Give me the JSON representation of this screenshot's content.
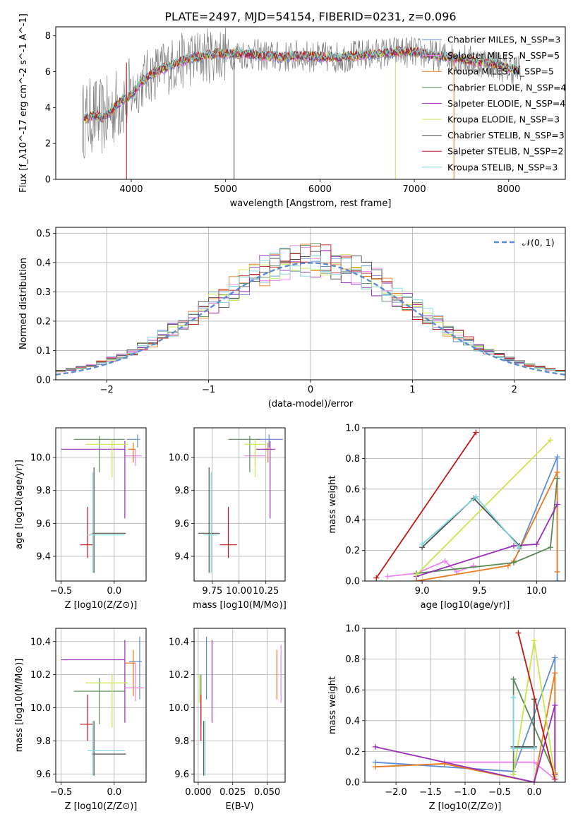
{
  "colors": {
    "chabrier_miles": "#5f8dd3",
    "salpeter_miles": "#ee82ee",
    "kroupa_miles": "#e87a1f",
    "chabrier_elodie": "#5a8a5a",
    "salpeter_elodie": "#9b30b8",
    "kroupa_elodie": "#c8e84a",
    "chabrier_stelib": "#505050",
    "salpeter_stelib": "#c01818",
    "kroupa_stelib": "#7fd6dc"
  },
  "chart_data": [
    {
      "id": "spectrum",
      "type": "line",
      "title": "PLATE=2497, MJD=54154, FIBERID=0231, z=0.096",
      "xlabel": "wavelength [Angstrom, rest frame]",
      "ylabel": "Flux [f_λ10^-17 erg cm^-2 s^-1 A^-1]",
      "xlim": [
        3200,
        8600
      ],
      "ylim": [
        0,
        8.5
      ],
      "xticks": [
        4000,
        5000,
        6000,
        7000,
        8000
      ],
      "yticks": [
        0,
        2,
        4,
        6,
        8
      ],
      "grid": false,
      "legend_position": "right",
      "legend": [
        {
          "label": "Chabrier MILES, N_SSP=3",
          "color_key": "chabrier_miles"
        },
        {
          "label": "Salpeter MILES, N_SSP=5",
          "color_key": "salpeter_miles"
        },
        {
          "label": "Kroupa MILES, N_SSP=5",
          "color_key": "kroupa_miles"
        },
        {
          "label": "Chabrier ELODIE, N_SSP=4",
          "color_key": "chabrier_elodie"
        },
        {
          "label": "Salpeter ELODIE, N_SSP=4",
          "color_key": "salpeter_elodie"
        },
        {
          "label": "Kroupa ELODIE, N_SSP=3",
          "color_key": "kroupa_elodie"
        },
        {
          "label": "Chabrier STELIB, N_SSP=3",
          "color_key": "chabrier_stelib"
        },
        {
          "label": "Salpeter STELIB, N_SSP=2",
          "color_key": "salpeter_stelib"
        },
        {
          "label": "Kroupa STELIB, N_SSP=3",
          "color_key": "kroupa_stelib"
        }
      ],
      "model_curve": {
        "x": [
          3500,
          3600,
          3700,
          3800,
          3900,
          4000,
          4100,
          4200,
          4300,
          4400,
          4500,
          4600,
          4700,
          4800,
          4900,
          5000,
          5200,
          5400,
          5600,
          5800,
          6000,
          6200,
          6400,
          6600,
          6800,
          7000,
          7200,
          7400,
          7600,
          7800,
          8000,
          8200
        ],
        "y": [
          3.3,
          3.6,
          3.4,
          3.9,
          4.4,
          4.7,
          5.4,
          5.8,
          6.1,
          6.3,
          6.5,
          6.7,
          6.8,
          6.9,
          7.0,
          7.0,
          7.0,
          6.9,
          6.8,
          6.9,
          6.8,
          6.8,
          6.9,
          7.0,
          7.1,
          7.1,
          6.9,
          6.8,
          6.6,
          6.5,
          6.2,
          6.0
        ]
      }
    },
    {
      "id": "residuals",
      "type": "histogram",
      "xlabel": "(data-model)/error",
      "ylabel": "Normed distribution",
      "xlim": [
        -2.5,
        2.5
      ],
      "ylim": [
        0,
        0.52
      ],
      "xticks": [
        -2,
        -1,
        0,
        1,
        2
      ],
      "yticks": [
        0.0,
        0.1,
        0.2,
        0.3,
        0.4,
        0.5
      ],
      "grid": true,
      "legend_position": "upper right",
      "reference_label": "𝒩(0, 1)",
      "reference_color": "#5f8dd3"
    },
    {
      "id": "age_vs_Z",
      "type": "scatter",
      "xlabel": "Z [log10(Z/Z⊙)]",
      "ylabel": "age [log10(age/yr)]",
      "xlim": [
        -0.55,
        0.3
      ],
      "ylim": [
        9.25,
        10.18
      ],
      "xticks": [
        -0.5,
        0.0
      ],
      "yticks": [
        9.4,
        9.6,
        9.8,
        10.0
      ],
      "grid": true,
      "points": [
        {
          "key": "chabrier_miles",
          "x": 0.22,
          "y": 10.11,
          "xerr": [
            0.1,
            0.02
          ],
          "yerr": [
            0.05,
            0.03
          ]
        },
        {
          "key": "salpeter_miles",
          "x": 0.2,
          "y": 10.01,
          "xerr": [
            0.1,
            0.06
          ],
          "yerr": [
            0.06,
            0.04
          ]
        },
        {
          "key": "kroupa_miles",
          "x": 0.18,
          "y": 10.05,
          "xerr": [
            0.05,
            0.02
          ],
          "yerr": [
            0.08,
            0.04
          ]
        },
        {
          "key": "chabrier_elodie",
          "x": -0.14,
          "y": 10.11,
          "xerr": [
            0.24,
            0.24
          ],
          "yerr": [
            0.2,
            0.02
          ]
        },
        {
          "key": "salpeter_elodie",
          "x": 0.1,
          "y": 10.05,
          "xerr": [
            0.6,
            0.0
          ],
          "yerr": [
            0.42,
            0.05
          ]
        },
        {
          "key": "kroupa_elodie",
          "x": -0.02,
          "y": 10.08,
          "xerr": [
            0.25,
            0.15
          ],
          "yerr": [
            0.2,
            0.03
          ]
        },
        {
          "key": "chabrier_stelib",
          "x": -0.19,
          "y": 9.54,
          "xerr": [
            0.02,
            0.3
          ],
          "yerr": [
            0.24,
            0.4
          ]
        },
        {
          "key": "salpeter_stelib",
          "x": -0.25,
          "y": 9.47,
          "xerr": [
            0.07,
            0.05
          ],
          "yerr": [
            0.08,
            0.23
          ]
        },
        {
          "key": "kroupa_stelib",
          "x": -0.2,
          "y": 9.53,
          "xerr": [
            0.05,
            0.3
          ],
          "yerr": [
            0.23,
            0.38
          ]
        }
      ]
    },
    {
      "id": "age_vs_mass",
      "type": "scatter",
      "xlabel": "mass [log10(M/M⊙)]",
      "ylabel": "",
      "xlim": [
        9.58,
        10.43
      ],
      "ylim": [
        9.25,
        10.18
      ],
      "xticks": [
        9.75,
        10.0,
        10.25
      ],
      "yticks": [
        9.4,
        9.6,
        9.8,
        10.0
      ],
      "grid": true,
      "points": [
        {
          "key": "chabrier_miles",
          "x": 10.28,
          "y": 10.11,
          "xerr": [
            0.13,
            0.13
          ],
          "yerr": [
            0.05,
            0.03
          ]
        },
        {
          "key": "salpeter_miles",
          "x": 10.15,
          "y": 10.01,
          "xerr": [
            0.1,
            0.1
          ],
          "yerr": [
            0.06,
            0.04
          ]
        },
        {
          "key": "kroupa_miles",
          "x": 10.27,
          "y": 10.05,
          "xerr": [
            0.05,
            0.02
          ],
          "yerr": [
            0.08,
            0.04
          ]
        },
        {
          "key": "chabrier_elodie",
          "x": 10.1,
          "y": 10.11,
          "xerr": [
            0.2,
            0.1
          ],
          "yerr": [
            0.2,
            0.02
          ]
        },
        {
          "key": "salpeter_elodie",
          "x": 10.29,
          "y": 10.05,
          "xerr": [
            0.13,
            0.05
          ],
          "yerr": [
            0.42,
            0.05
          ]
        },
        {
          "key": "kroupa_elodie",
          "x": 10.15,
          "y": 10.08,
          "xerr": [
            0.1,
            0.1
          ],
          "yerr": [
            0.2,
            0.03
          ]
        },
        {
          "key": "chabrier_stelib",
          "x": 9.72,
          "y": 9.54,
          "xerr": [
            0.1,
            0.1
          ],
          "yerr": [
            0.24,
            0.4
          ]
        },
        {
          "key": "salpeter_stelib",
          "x": 9.9,
          "y": 9.47,
          "xerr": [
            0.08,
            0.08
          ],
          "yerr": [
            0.08,
            0.23
          ]
        },
        {
          "key": "kroupa_stelib",
          "x": 9.74,
          "y": 9.53,
          "xerr": [
            0.07,
            0.07
          ],
          "yerr": [
            0.23,
            0.38
          ]
        }
      ]
    },
    {
      "id": "weight_vs_age",
      "type": "line",
      "xlabel": "age [log10(age/yr)]",
      "ylabel": "mass weight",
      "xlim": [
        8.5,
        10.25
      ],
      "ylim": [
        0,
        1.0
      ],
      "xticks": [
        9.0,
        9.5,
        10.0
      ],
      "yticks": [
        0.0,
        0.2,
        0.4,
        0.6,
        0.8,
        1.0
      ],
      "grid": true,
      "series": [
        {
          "key": "chabrier_miles",
          "x": [
            9.85,
            10.18,
            10.18
          ],
          "y": [
            0.21,
            0.81,
            0.0
          ]
        },
        {
          "key": "salpeter_miles",
          "x": [
            8.7,
            8.95,
            9.2,
            9.3,
            9.45
          ],
          "y": [
            0.03,
            0.05,
            0.13,
            0.06,
            0.1
          ]
        },
        {
          "key": "kroupa_miles",
          "x": [
            8.95,
            9.75,
            9.8,
            10.18,
            10.18
          ],
          "y": [
            0.0,
            0.1,
            0.13,
            0.71,
            0.06
          ]
        },
        {
          "key": "chabrier_elodie",
          "x": [
            8.95,
            9.8,
            10.12,
            10.18
          ],
          "y": [
            0.05,
            0.12,
            0.22,
            0.67
          ]
        },
        {
          "key": "salpeter_elodie",
          "x": [
            8.95,
            9.8,
            10.0,
            10.18
          ],
          "y": [
            0.03,
            0.23,
            0.24,
            0.5
          ]
        },
        {
          "key": "kroupa_elodie",
          "x": [
            8.95,
            10.12
          ],
          "y": [
            0.04,
            0.92
          ]
        },
        {
          "key": "chabrier_stelib",
          "x": [
            9.0,
            9.45,
            9.85
          ],
          "y": [
            0.22,
            0.54,
            0.23
          ]
        },
        {
          "key": "salpeter_stelib",
          "x": [
            8.6,
            9.47
          ],
          "y": [
            0.02,
            0.97
          ]
        },
        {
          "key": "kroupa_stelib",
          "x": [
            9.0,
            9.47,
            9.85
          ],
          "y": [
            0.24,
            0.55,
            0.22
          ]
        }
      ]
    },
    {
      "id": "mass_vs_Z",
      "type": "scatter",
      "xlabel": "Z [log10(Z/Z⊙)]",
      "ylabel": "mass [log10(M/M⊙)]",
      "xlim": [
        -0.55,
        0.3
      ],
      "ylim": [
        9.55,
        10.48
      ],
      "xticks": [
        -0.5,
        0.0
      ],
      "yticks": [
        9.6,
        9.8,
        10.0,
        10.2,
        10.4
      ],
      "grid": true,
      "points": [
        {
          "key": "chabrier_miles",
          "x": 0.24,
          "y": 10.28,
          "xerr": [
            0.1,
            0.02
          ],
          "yerr": [
            0.23,
            0.15
          ]
        },
        {
          "key": "salpeter_miles",
          "x": 0.2,
          "y": 10.12,
          "xerr": [
            0.1,
            0.08
          ],
          "yerr": [
            0.08,
            0.15
          ]
        },
        {
          "key": "kroupa_miles",
          "x": 0.18,
          "y": 10.27,
          "xerr": [
            0.08,
            0.02
          ],
          "yerr": [
            0.2,
            0.08
          ]
        },
        {
          "key": "chabrier_elodie",
          "x": -0.14,
          "y": 10.1,
          "xerr": [
            0.24,
            0.24
          ],
          "yerr": [
            0.2,
            0.08
          ]
        },
        {
          "key": "salpeter_elodie",
          "x": 0.1,
          "y": 10.29,
          "xerr": [
            0.6,
            0.0
          ],
          "yerr": [
            0.38,
            0.12
          ]
        },
        {
          "key": "kroupa_elodie",
          "x": -0.02,
          "y": 10.15,
          "xerr": [
            0.25,
            0.15
          ],
          "yerr": [
            0.27,
            0.05
          ]
        },
        {
          "key": "chabrier_stelib",
          "x": -0.19,
          "y": 9.72,
          "xerr": [
            0.02,
            0.3
          ],
          "yerr": [
            0.13,
            0.2
          ]
        },
        {
          "key": "salpeter_stelib",
          "x": -0.25,
          "y": 9.9,
          "xerr": [
            0.07,
            0.05
          ],
          "yerr": [
            0.1,
            0.18
          ]
        },
        {
          "key": "kroupa_stelib",
          "x": -0.2,
          "y": 9.74,
          "xerr": [
            0.05,
            0.3
          ],
          "yerr": [
            0.15,
            0.18
          ]
        }
      ]
    },
    {
      "id": "mass_vs_EBV",
      "type": "scatter",
      "xlabel": "E(B-V)",
      "ylabel": "",
      "xlim": [
        -0.003,
        0.063
      ],
      "ylim": [
        9.55,
        10.48
      ],
      "xticks": [
        0.0,
        0.025,
        0.05
      ],
      "xticklabels": [
        "0.000",
        "0.025",
        "0.050"
      ],
      "yticks": [
        9.6,
        9.8,
        10.0,
        10.2,
        10.4
      ],
      "grid": true,
      "points": [
        {
          "key": "chabrier_miles",
          "x": 0.006,
          "y": 10.28,
          "yerr": [
            0.23,
            0.15
          ]
        },
        {
          "key": "salpeter_miles",
          "x": 0.06,
          "y": 10.2,
          "yerr": [
            0.17,
            0.18
          ]
        },
        {
          "key": "kroupa_miles",
          "x": 0.057,
          "y": 10.2,
          "yerr": [
            0.15,
            0.15
          ]
        },
        {
          "key": "chabrier_elodie",
          "x": 0.002,
          "y": 10.1,
          "yerr": [
            0.2,
            0.1
          ]
        },
        {
          "key": "salpeter_elodie",
          "x": 0.01,
          "y": 10.29,
          "yerr": [
            0.38,
            0.12
          ]
        },
        {
          "key": "kroupa_elodie",
          "x": 0.001,
          "y": 10.15,
          "yerr": [
            0.12,
            0.05
          ]
        },
        {
          "key": "chabrier_stelib",
          "x": 0.004,
          "y": 9.72,
          "yerr": [
            0.13,
            0.2
          ]
        },
        {
          "key": "salpeter_stelib",
          "x": 0.002,
          "y": 9.9,
          "yerr": [
            0.1,
            0.18
          ]
        },
        {
          "key": "kroupa_stelib",
          "x": 0.005,
          "y": 9.74,
          "yerr": [
            0.15,
            0.18
          ]
        }
      ]
    },
    {
      "id": "weight_vs_Z",
      "type": "line",
      "xlabel": "Z [log10(Z/Z⊙)]",
      "ylabel": "mass weight",
      "xlim": [
        -2.45,
        0.45
      ],
      "ylim": [
        0,
        1.0
      ],
      "xticks": [
        -2.0,
        -1.5,
        -1.0,
        -0.5,
        0.0
      ],
      "yticks": [
        0.0,
        0.2,
        0.4,
        0.6,
        0.8,
        1.0
      ],
      "grid": true,
      "series": [
        {
          "key": "chabrier_miles",
          "x": [
            -2.3,
            -0.3,
            0.3,
            0.3
          ],
          "y": [
            0.13,
            0.07,
            0.81,
            0.0
          ]
        },
        {
          "key": "salpeter_miles",
          "x": [
            -1.3,
            -0.3,
            0.0,
            0.3
          ],
          "y": [
            0.13,
            0.13,
            0.13,
            0.02
          ]
        },
        {
          "key": "kroupa_miles",
          "x": [
            -2.3,
            -1.3,
            0.0,
            0.3,
            0.3
          ],
          "y": [
            0.1,
            0.12,
            0.0,
            0.71,
            0.06
          ]
        },
        {
          "key": "chabrier_elodie",
          "x": [
            -0.3,
            -0.3,
            0.3
          ],
          "y": [
            0.05,
            0.67,
            0.05
          ]
        },
        {
          "key": "salpeter_elodie",
          "x": [
            -2.3,
            0.0,
            0.3,
            0.3
          ],
          "y": [
            0.23,
            0.0,
            0.5,
            0.05
          ]
        },
        {
          "key": "kroupa_elodie",
          "x": [
            -0.3,
            0.0,
            0.3
          ],
          "y": [
            0.05,
            0.92,
            0.04
          ]
        },
        {
          "key": "chabrier_stelib",
          "x": [
            -0.3,
            0.0,
            0.0
          ],
          "y": [
            0.23,
            0.23,
            0.54
          ]
        },
        {
          "key": "salpeter_stelib",
          "x": [
            -0.23,
            0.3
          ],
          "y": [
            0.97,
            0.02
          ]
        },
        {
          "key": "kroupa_stelib",
          "x": [
            -0.3,
            -0.3,
            0.0
          ],
          "y": [
            0.55,
            0.22,
            0.22
          ]
        }
      ]
    }
  ]
}
